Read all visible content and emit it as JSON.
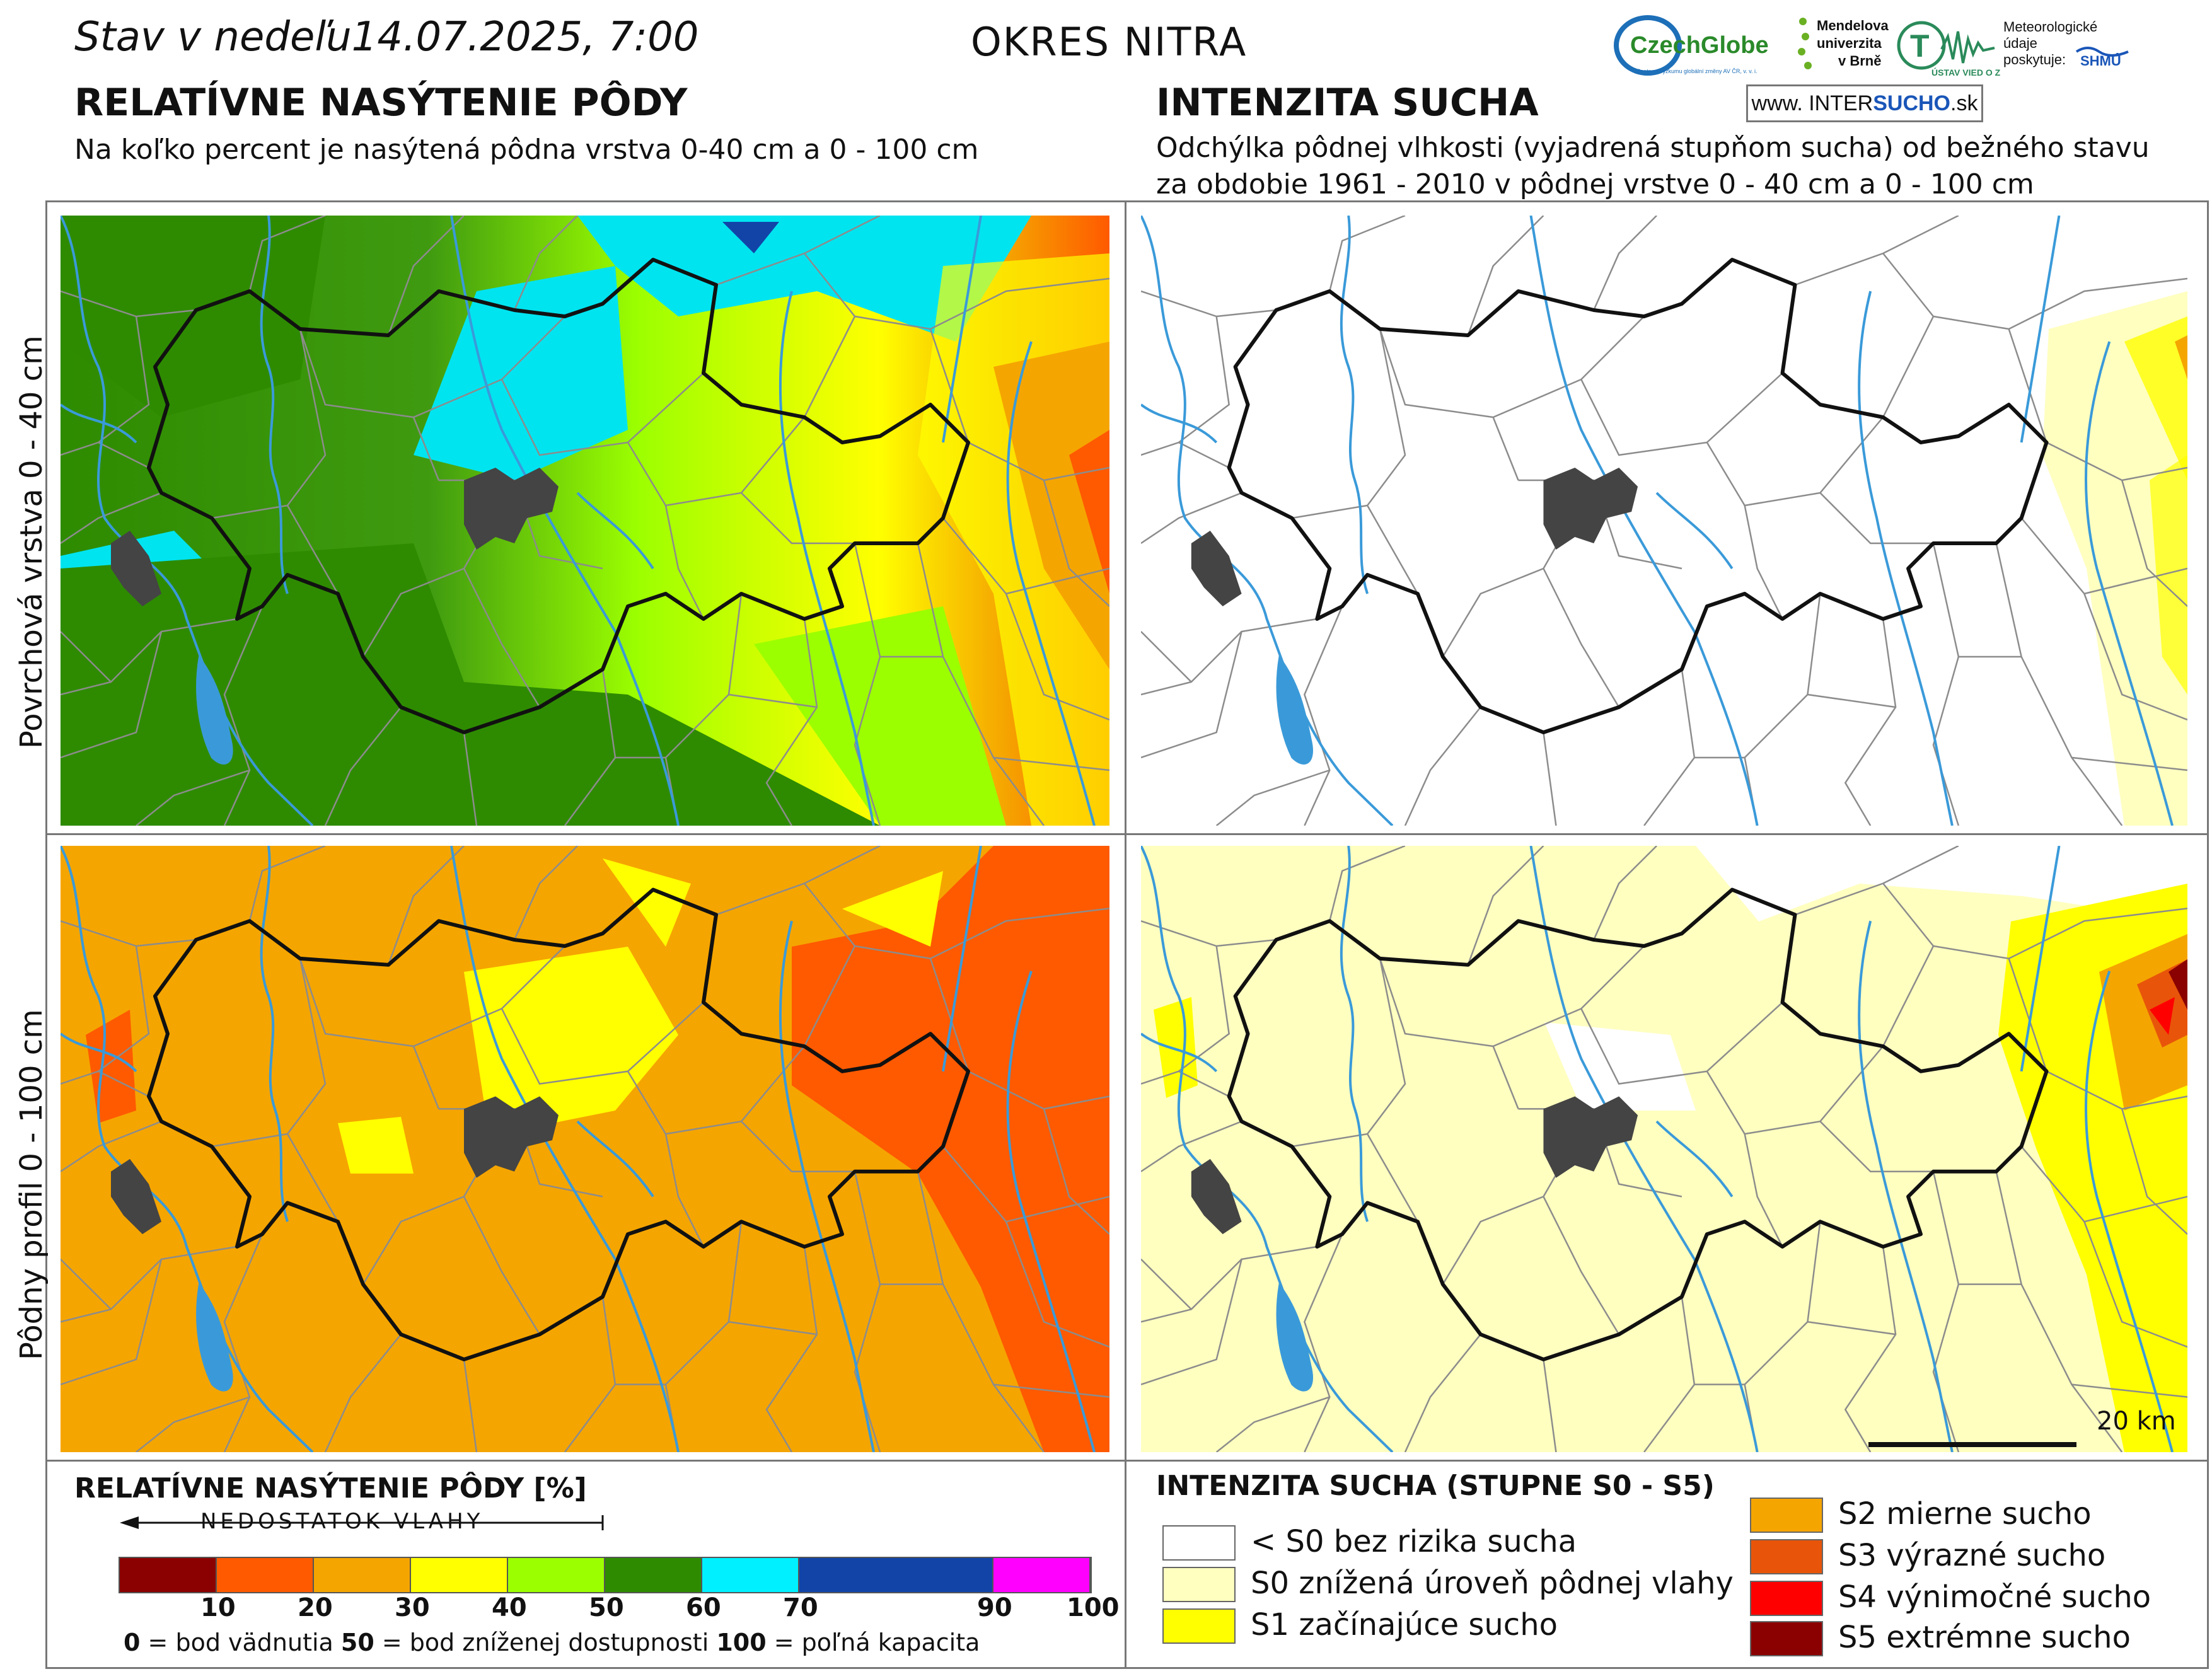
{
  "header": {
    "date_prefix": "Stav v nedeľu",
    "date_value": "14.07.2025, 7:00",
    "district": "OKRES  NITRA"
  },
  "left": {
    "title": "RELATÍVNE NASÝTENIE PÔDY",
    "subtitle": "Na koľko percent je nasýtená pôdna vrstva 0-40 cm a 0 - 100 cm"
  },
  "right": {
    "title": "INTENZITA SUCHA",
    "subtitle_line1": "Odchýlka pôdnej vlhkosti (vyjadrená stupňom sucha) od bežného stavu",
    "subtitle_line2": "za obdobie 1961 - 2010 v pôdnej vrstve 0 - 40 cm a 0 - 100 cm"
  },
  "logos": {
    "czechglobe": "CzechGlobe",
    "czechglobe_sub": "Centrum výzkumu globální změny AV ČR, v. v. i.",
    "mendel": [
      "Mendelova",
      "univerzita",
      "v Brně"
    ],
    "usv": "ÚSTAV VIED O ZEMI",
    "meteo": [
      "Meteorologické",
      "údaje",
      "poskytuje:"
    ],
    "shmu": "SHMÚ",
    "intersucho_pre": "www. INTER",
    "intersucho_bold": "SUCHO",
    "intersucho_post": " .sk"
  },
  "row_labels": {
    "top": "Povrchová vrstva 0 - 40 cm",
    "bottom": "Pôdny profil 0 - 100 cm"
  },
  "scale": {
    "label": "20 km"
  },
  "legend_saturation": {
    "title": "RELATÍVNE NASÝTENIE PÔDY [%]",
    "arrow_label": "NEDOSTATOK VLAHY",
    "bins": [
      {
        "from": 0,
        "to": 10,
        "color": "#8b0000"
      },
      {
        "from": 10,
        "to": 20,
        "color": "#ff5a00"
      },
      {
        "from": 20,
        "to": 30,
        "color": "#f5a500"
      },
      {
        "from": 30,
        "to": 40,
        "color": "#ffff00"
      },
      {
        "from": 40,
        "to": 50,
        "color": "#9cff00"
      },
      {
        "from": 50,
        "to": 60,
        "color": "#2e8b00"
      },
      {
        "from": 60,
        "to": 70,
        "color": "#00f0ff"
      },
      {
        "from": 70,
        "to": 90,
        "color": "#1244a8"
      },
      {
        "from": 90,
        "to": 100,
        "color": "#ff00ff"
      }
    ],
    "ticks": [
      "10",
      "20",
      "30",
      "40",
      "50",
      "60",
      "70",
      "90",
      "100"
    ],
    "note_0": "0",
    "note_0_text": " = bod vädnutia  ",
    "note_50": "50",
    "note_50_text": " = bod zníženej dostupnosti  ",
    "note_100": "100",
    "note_100_text": " = poľná kapacita"
  },
  "legend_drought": {
    "title": "INTENZITA SUCHA (STUPNE S0 - S5)",
    "items": [
      {
        "label": "< S0 bez rizika sucha",
        "color": "#ffffff"
      },
      {
        "label": "S0 znížená úroveň pôdnej vlahy",
        "color": "#ffffc0"
      },
      {
        "label": "S1 začínajúce sucho",
        "color": "#ffff00"
      },
      {
        "label": "S2 mierne sucho",
        "color": "#f5a500"
      },
      {
        "label": "S3 výrazné sucho",
        "color": "#e8550a"
      },
      {
        "label": "S4 výnimočné sucho",
        "color": "#ff0000"
      },
      {
        "label": "S5 extrémne sucho",
        "color": "#8b0000"
      }
    ]
  },
  "map_colors": {
    "river": "#3a9ad9",
    "border": "#111111",
    "boundaries": "#8c8c8c",
    "city": "#444444"
  }
}
